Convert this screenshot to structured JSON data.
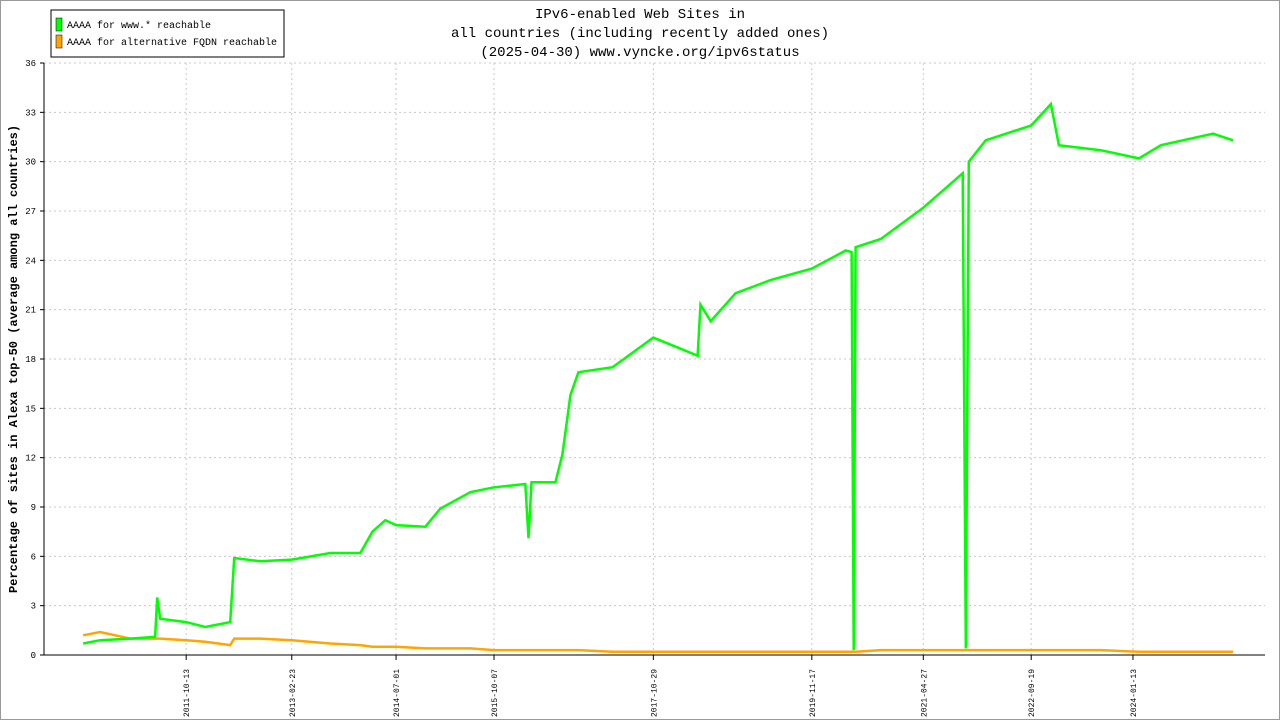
{
  "chart_data": {
    "type": "line",
    "title": [
      "IPv6-enabled Web Sites in",
      "all countries (including recently added ones)",
      "(2025-04-30) www.vyncke.org/ipv6status"
    ],
    "y_label": "Percentage of sites in Alexa top-50 (average among all countries)",
    "x": [
      "2010-06-13",
      "2010-09-01",
      "2011-01-21",
      "2011-05-19",
      "2011-05-29",
      "2011-06-12",
      "2011-10-13",
      "2012-01-11",
      "2012-05-08",
      "2012-05-27",
      "2012-09-27",
      "2013-02-23",
      "2013-08-24",
      "2014-01-13",
      "2014-03-11",
      "2014-05-11",
      "2014-07-01",
      "2014-11-16",
      "2015-01-26",
      "2015-06-17",
      "2015-10-07",
      "2016-03-03",
      "2016-03-18",
      "2016-04-01",
      "2016-07-23",
      "2016-08-25",
      "2016-10-02",
      "2016-11-09",
      "2017-04-19",
      "2017-10-29",
      "2018-05-26",
      "2018-06-09",
      "2018-07-27",
      "2018-11-22",
      "2019-05-06",
      "2019-11-17",
      "2020-04-25",
      "2020-05-23",
      "2020-06-02",
      "2020-06-11",
      "2020-10-08",
      "2021-04-27",
      "2021-10-30",
      "2021-11-14",
      "2021-11-28",
      "2022-02-16",
      "2022-09-19",
      "2022-12-21",
      "2023-01-28",
      "2023-08-14",
      "2024-02-10",
      "2024-05-24",
      "2025-01-25",
      "2025-04-30"
    ],
    "series": [
      {
        "name": "AAAA for www.* reachable",
        "color": "#00ff00",
        "values": [
          0.7,
          0.9,
          1.0,
          1.1,
          3.5,
          2.2,
          2.0,
          1.7,
          2.0,
          5.9,
          5.7,
          5.8,
          6.2,
          6.2,
          7.5,
          8.2,
          7.9,
          7.8,
          8.9,
          9.9,
          10.2,
          10.4,
          7.1,
          10.5,
          10.5,
          12.2,
          15.8,
          17.2,
          17.5,
          19.3,
          18.2,
          21.3,
          20.3,
          22.0,
          22.8,
          23.5,
          24.6,
          24.5,
          0.3,
          24.8,
          25.3,
          27.2,
          29.3,
          0.4,
          30.0,
          31.3,
          32.2,
          33.5,
          31.0,
          30.7,
          30.2,
          31.0,
          31.7,
          31.3
        ]
      },
      {
        "name": "AAAA for alternative FQDN reachable",
        "color": "#ffa500",
        "values": [
          1.2,
          1.4,
          1.0,
          1.0,
          1.0,
          1.0,
          0.9,
          0.8,
          0.6,
          1.0,
          1.0,
          0.9,
          0.7,
          0.6,
          0.5,
          0.5,
          0.5,
          0.4,
          0.4,
          0.4,
          0.3,
          0.3,
          0.3,
          0.3,
          0.3,
          0.3,
          0.3,
          0.3,
          0.2,
          0.2,
          0.2,
          0.2,
          0.2,
          0.2,
          0.2,
          0.2,
          0.2,
          0.2,
          0.2,
          0.2,
          0.3,
          0.3,
          0.3,
          0.3,
          0.3,
          0.3,
          0.3,
          0.3,
          0.3,
          0.3,
          0.2,
          0.2,
          0.2,
          0.2
        ]
      }
    ],
    "xlim": [
      "2009-12-10",
      "2025-09-28"
    ],
    "xticks": [
      "2011-10-13",
      "2013-02-23",
      "2014-07-01",
      "2015-10-07",
      "2017-10-29",
      "2019-11-17",
      "2021-04-27",
      "2022-09-19",
      "2024-01-13"
    ],
    "ylim": [
      0,
      36
    ],
    "yticks": [
      0,
      3,
      6,
      9,
      12,
      15,
      18,
      21,
      24,
      27,
      30,
      33,
      36
    ],
    "grid": true,
    "legend": "top-left"
  }
}
